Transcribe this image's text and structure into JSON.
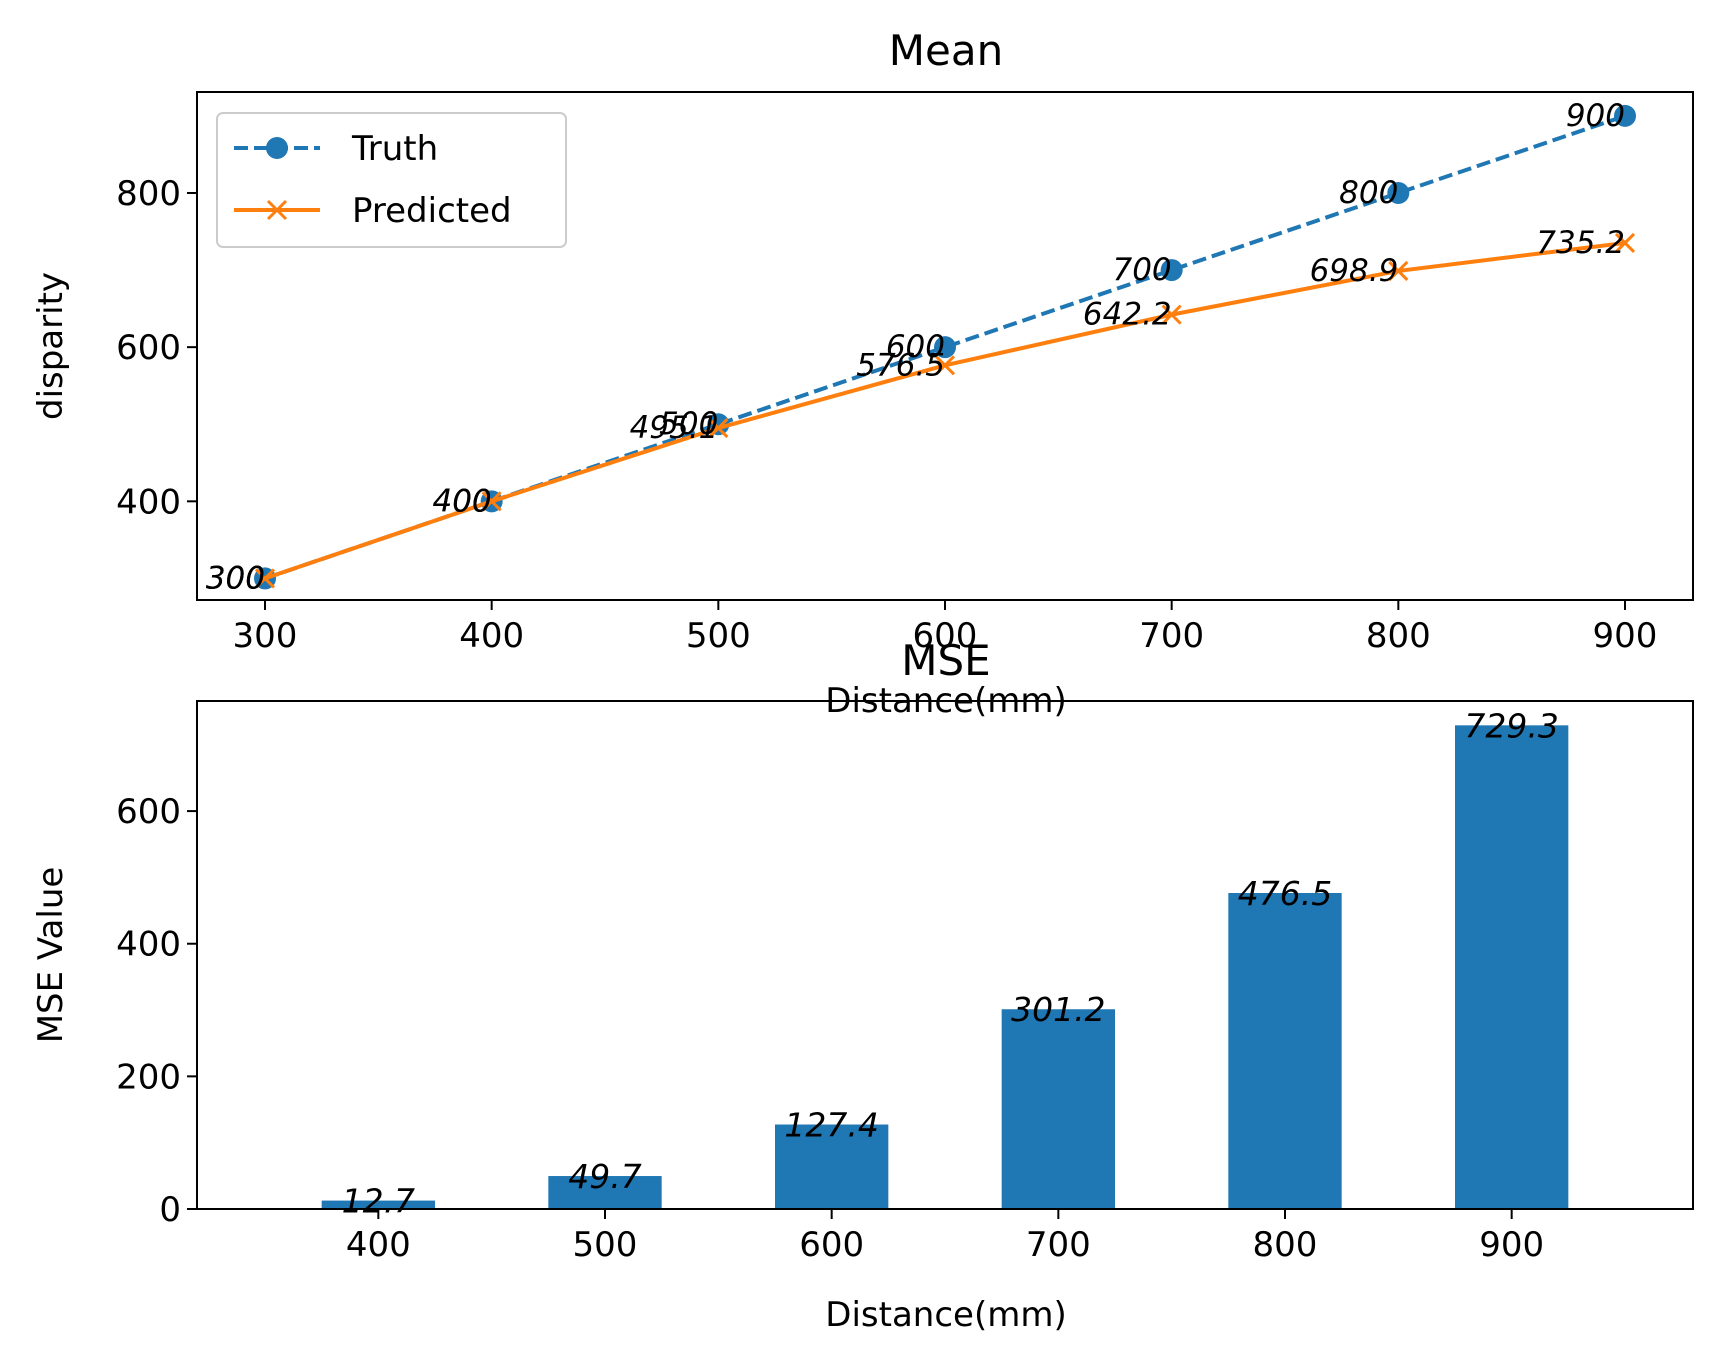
{
  "chart_data": [
    {
      "type": "line",
      "title": "Mean",
      "xlabel": "Distance(mm)",
      "ylabel": "disparity",
      "x": [
        300,
        400,
        500,
        600,
        700,
        800,
        900
      ],
      "xticks": [
        "300",
        "400",
        "500",
        "600",
        "700",
        "800",
        "900"
      ],
      "yticks": [
        "400",
        "600",
        "800"
      ],
      "xlim": [
        270,
        930
      ],
      "ylim": [
        272,
        931
      ],
      "grid": false,
      "legend_position": "upper-left",
      "series": [
        {
          "name": "Truth",
          "style": "dashed",
          "marker": "circle",
          "color": "#1f77b4",
          "values": [
            300,
            400,
            500,
            600,
            700,
            800,
            900
          ],
          "labels": [
            "300",
            "400",
            "500",
            "600",
            "700",
            "800",
            "900"
          ]
        },
        {
          "name": "Predicted",
          "style": "solid",
          "marker": "x",
          "color": "#ff7f0e",
          "values": [
            300,
            400,
            495.1,
            576.5,
            642.2,
            698.9,
            735.2
          ],
          "labels": [
            "300",
            "400",
            "495.1",
            "576.5",
            "642.2",
            "698.9",
            "735.2"
          ]
        }
      ]
    },
    {
      "type": "bar",
      "title": "MSE",
      "xlabel": "Distance(mm)",
      "ylabel": "MSE Value",
      "categories": [
        "400",
        "500",
        "600",
        "700",
        "800",
        "900"
      ],
      "values": [
        12.7,
        49.7,
        127.4,
        301.2,
        476.5,
        729.3
      ],
      "labels": [
        "12.7",
        "49.7",
        "127.4",
        "301.2",
        "476.5",
        "729.3"
      ],
      "yticks": [
        "0",
        "200",
        "400",
        "600"
      ],
      "ylim": [
        0,
        766
      ],
      "grid": false,
      "color": "#1f77b4"
    }
  ]
}
